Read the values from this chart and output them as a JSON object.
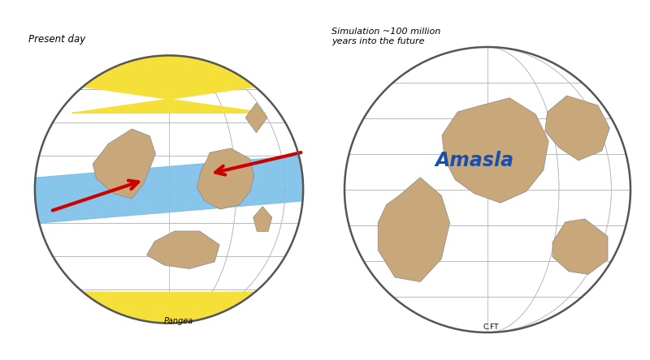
{
  "bg_color": "#ffffff",
  "land_color": "#c8a87a",
  "land_edge_color": "#888888",
  "globe_edge_color": "#555555",
  "grid_color": "#bbbbbb",
  "blue_band_color": "#7bbfe8",
  "yellow_cap_color": "#f5e03a",
  "arrow_color": "#cc0000",
  "title_left": "Present day",
  "title_right": "Simulation ~100 million\nyears into the future",
  "label_pangea": "Pangea",
  "label_amasia": "Amasla",
  "label_cft": "C.FT",
  "amasia_color": "#1a4faa",
  "figsize": [
    8.0,
    4.44
  ],
  "dpi": 100
}
